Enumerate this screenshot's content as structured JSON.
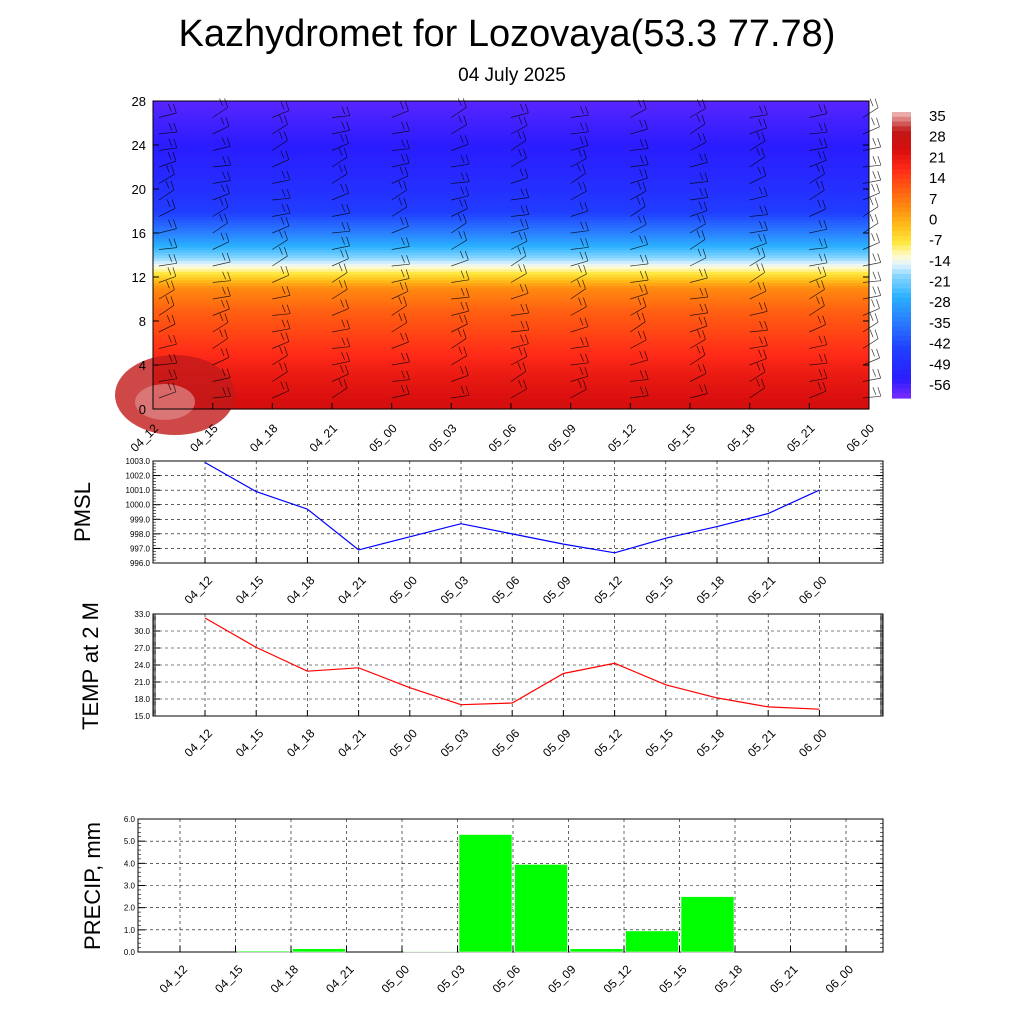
{
  "header": {
    "title": "Kazhydromet for Lozovaya(53.3 77.78)",
    "subtitle": "04 July 2025"
  },
  "time_labels": [
    "04_12",
    "04_15",
    "04_18",
    "04_21",
    "05_00",
    "05_03",
    "05_06",
    "05_09",
    "05_12",
    "05_15",
    "05_18",
    "05_21",
    "06_00"
  ],
  "chart_data": [
    {
      "type": "heatmap",
      "title": "",
      "xlabel": "",
      "ylabel": "",
      "x": [
        "04_12",
        "04_15",
        "04_18",
        "04_21",
        "05_00",
        "05_03",
        "05_06",
        "05_09",
        "05_12",
        "05_15",
        "05_18",
        "05_21",
        "06_00"
      ],
      "y_ticks": [
        0,
        4,
        8,
        12,
        16,
        20,
        24,
        28
      ],
      "ylim": [
        0,
        28
      ],
      "colorbar": {
        "labels": [
          "35",
          "28",
          "21",
          "14",
          "7",
          "0",
          "-7",
          "-14",
          "-21",
          "-28",
          "-35",
          "-42",
          "-49",
          "-56"
        ],
        "range": [
          -63,
          42
        ]
      },
      "temperature_profile": [
        {
          "level": 0,
          "value": 29
        },
        {
          "level": 3,
          "value": 25
        },
        {
          "level": 6,
          "value": 19
        },
        {
          "level": 9,
          "value": 13
        },
        {
          "level": 11,
          "value": 7
        },
        {
          "level": 13,
          "value": -12
        },
        {
          "level": 14,
          "value": -20
        },
        {
          "level": 16,
          "value": -34
        },
        {
          "level": 18,
          "value": -46
        },
        {
          "level": 20,
          "value": -50
        },
        {
          "level": 24,
          "value": -56
        },
        {
          "level": 28,
          "value": -60
        }
      ],
      "wind_barbs": "shown"
    },
    {
      "type": "line",
      "ylabel": "PMSL",
      "x": [
        "04_12",
        "04_15",
        "04_18",
        "04_21",
        "05_00",
        "05_03",
        "05_06",
        "05_09",
        "05_12",
        "05_15",
        "05_18",
        "05_21",
        "06_00"
      ],
      "y_tick_labels": [
        "996.0",
        "997.0",
        "998.0",
        "999.0",
        "1000.0",
        "1001.0",
        "1002.0",
        "1003.0"
      ],
      "ylim": [
        996,
        1003
      ],
      "series": [
        {
          "values": [
            1002.9,
            1000.9,
            999.7,
            996.9,
            997.8,
            998.7,
            998.0,
            997.3,
            996.7,
            997.7,
            998.5,
            999.4,
            1001.0
          ],
          "color": "#0000ff"
        }
      ],
      "grid": true
    },
    {
      "type": "line",
      "ylabel": "TEMP at 2 M",
      "x": [
        "04_12",
        "04_15",
        "04_18",
        "04_21",
        "05_00",
        "05_03",
        "05_06",
        "05_09",
        "05_12",
        "05_15",
        "05_18",
        "05_21",
        "06_00"
      ],
      "y_tick_labels": [
        "15.0",
        "18.0",
        "21.0",
        "24.0",
        "27.0",
        "30.0",
        "33.0"
      ],
      "ylim": [
        15,
        33
      ],
      "series": [
        {
          "values": [
            32.3,
            27.1,
            22.9,
            23.5,
            20.0,
            17.0,
            17.3,
            22.5,
            24.3,
            20.5,
            18.2,
            16.6,
            16.2
          ],
          "color": "#ff0000"
        }
      ],
      "grid": true
    },
    {
      "type": "bar",
      "ylabel": "PRECIP, mm",
      "categories": [
        "04_12",
        "04_15",
        "04_18",
        "04_21",
        "05_00",
        "05_03",
        "05_06",
        "05_09",
        "05_12",
        "05_15",
        "05_18",
        "05_21",
        "06_00"
      ],
      "values": [
        0.0,
        0.05,
        0.15,
        0.0,
        0.03,
        5.3,
        3.95,
        0.15,
        0.95,
        2.5,
        0.0,
        0.0,
        0.0
      ],
      "y_tick_labels": [
        "0.0",
        "1.0",
        "2.0",
        "3.0",
        "4.0",
        "5.0",
        "6.0"
      ],
      "ylim": [
        0,
        6
      ],
      "color": "#00ff00",
      "grid": true
    }
  ]
}
